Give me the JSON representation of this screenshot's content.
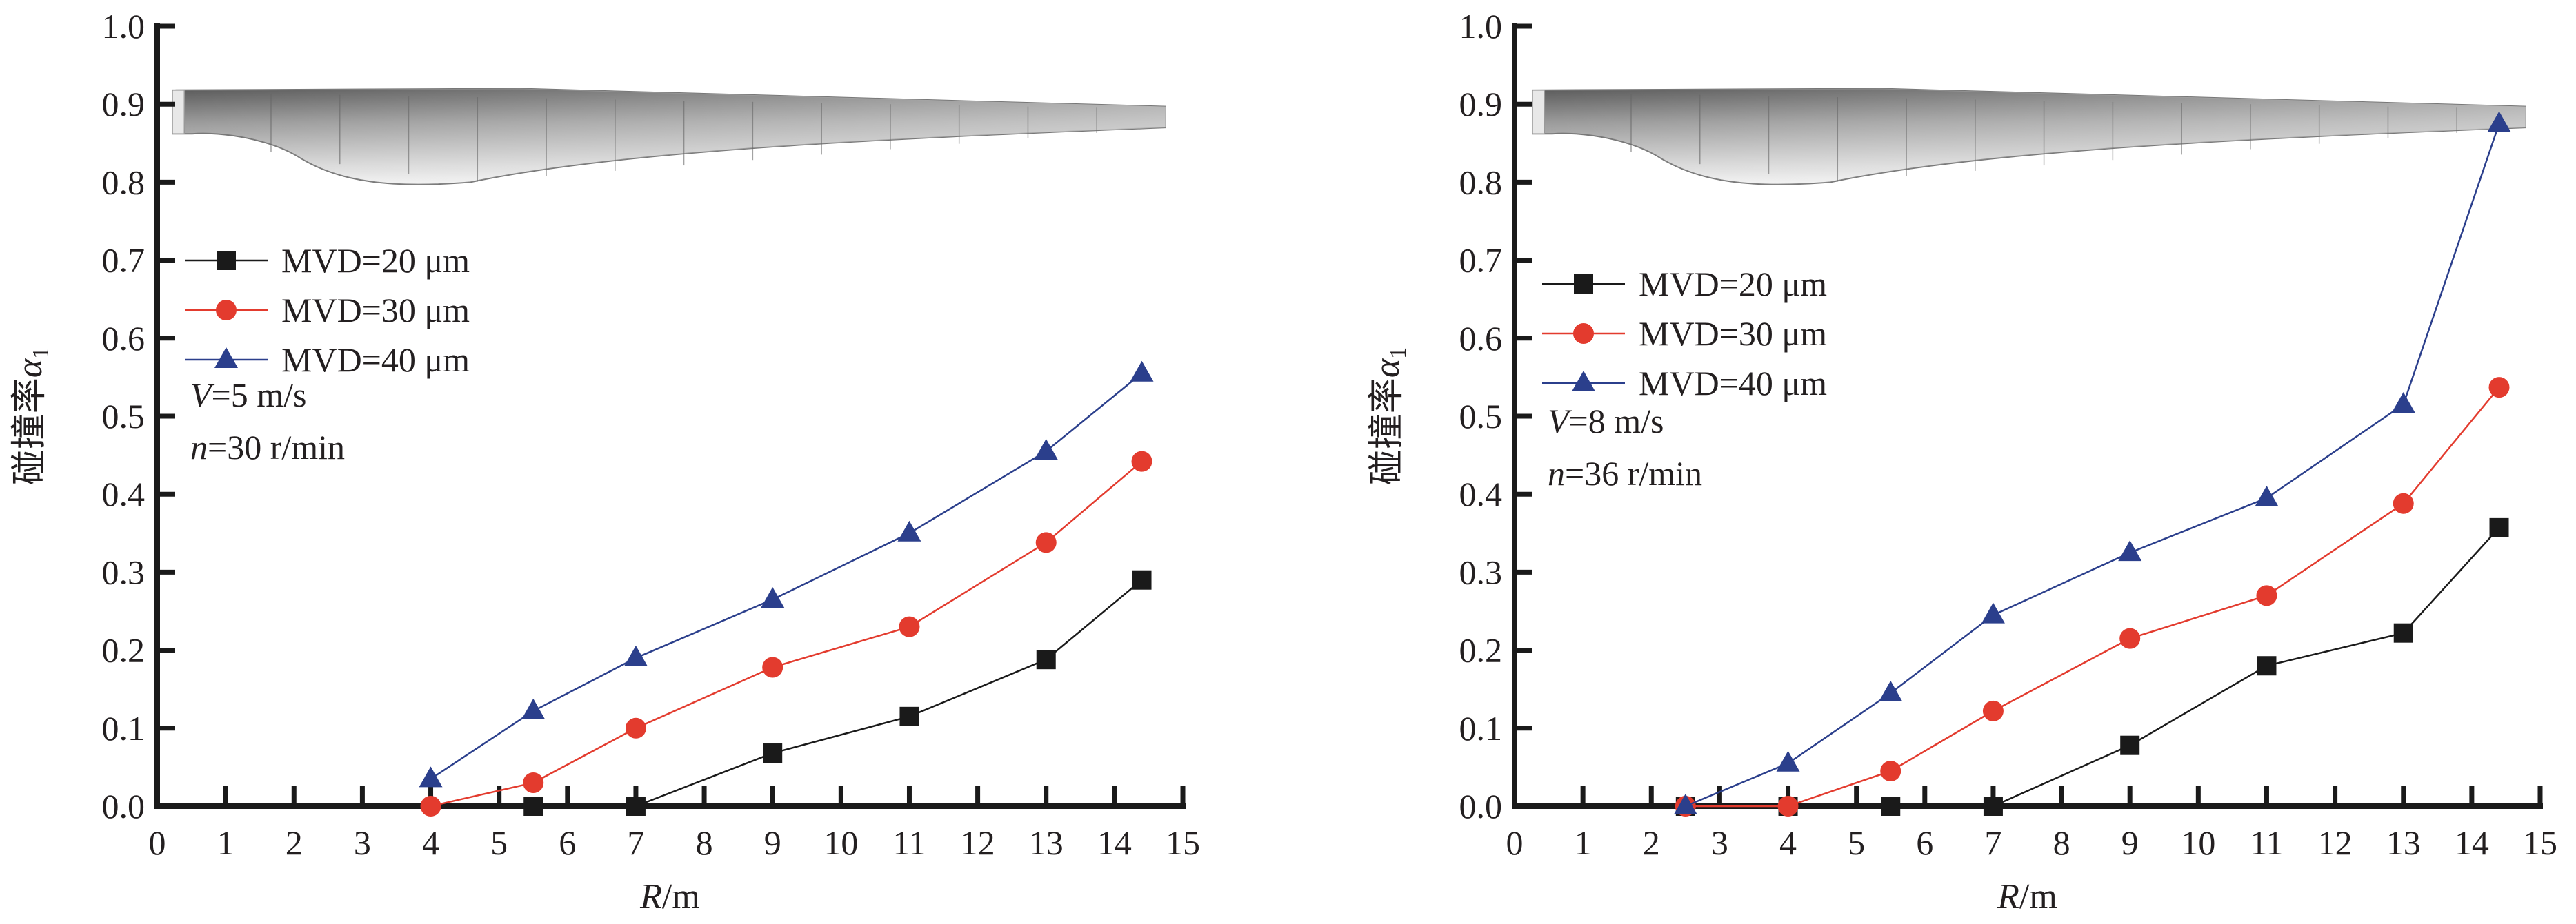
{
  "chart_data": [
    {
      "type": "line",
      "panel": "left",
      "title": "",
      "xlabel": "R/m",
      "xlabel_italic_part": "R",
      "xlabel_rest": "/m",
      "ylabel": "碰撞率α1",
      "ylabel_text": "碰撞率",
      "ylabel_symbol": "α",
      "ylabel_subscript": "1",
      "xlim": [
        0,
        15
      ],
      "ylim": [
        0,
        1.0
      ],
      "xticks": [
        0,
        1,
        2,
        3,
        4,
        5,
        6,
        7,
        8,
        9,
        10,
        11,
        12,
        13,
        14,
        15
      ],
      "xtick_labels": [
        "0",
        "1",
        "2",
        "3",
        "4",
        "5",
        "6",
        "7",
        "8",
        "9",
        "10",
        "11",
        "12",
        "13",
        "14",
        "15"
      ],
      "yticks": [
        0,
        0.1,
        0.2,
        0.3,
        0.4,
        0.5,
        0.6,
        0.7,
        0.8,
        0.9,
        1.0
      ],
      "ytick_labels": [
        "0.0",
        "0.1",
        "0.2",
        "0.3",
        "0.4",
        "0.5",
        "0.6",
        "0.7",
        "0.8",
        "0.9",
        "1.0"
      ],
      "grid": false,
      "legend_position": "left-middle",
      "conditions": [
        {
          "var": "V",
          "rest": "=5 m/s"
        },
        {
          "var": "n",
          "rest": "=30 r/min"
        }
      ],
      "series": [
        {
          "name": "MVD=20 μm",
          "marker": "square",
          "color": "#1a1a1a",
          "x": [
            5.5,
            7,
            9,
            11,
            13,
            14.4
          ],
          "y": [
            0.0,
            0.0,
            0.068,
            0.115,
            0.188,
            0.29
          ]
        },
        {
          "name": "MVD=30 μm",
          "marker": "circle",
          "color": "#e33b2e",
          "x": [
            4,
            5.5,
            7,
            9,
            11,
            13,
            14.4
          ],
          "y": [
            0.0,
            0.03,
            0.1,
            0.178,
            0.23,
            0.338,
            0.442
          ]
        },
        {
          "name": "MVD=40 μm",
          "marker": "triangle",
          "color": "#2b3f8c",
          "x": [
            4,
            5.5,
            7,
            9,
            11,
            13,
            14.4
          ],
          "y": [
            0.035,
            0.122,
            0.19,
            0.265,
            0.35,
            0.455,
            0.555
          ]
        }
      ]
    },
    {
      "type": "line",
      "panel": "right",
      "title": "",
      "xlabel": "R/m",
      "xlabel_italic_part": "R",
      "xlabel_rest": "/m",
      "ylabel": "碰撞率α1",
      "ylabel_text": "碰撞率",
      "ylabel_symbol": "α",
      "ylabel_subscript": "1",
      "xlim": [
        0,
        15
      ],
      "ylim": [
        0,
        1.0
      ],
      "xticks": [
        0,
        1,
        2,
        3,
        4,
        5,
        6,
        7,
        8,
        9,
        10,
        11,
        12,
        13,
        14,
        15
      ],
      "xtick_labels": [
        "0",
        "1",
        "2",
        "3",
        "4",
        "5",
        "6",
        "7",
        "8",
        "9",
        "10",
        "11",
        "12",
        "13",
        "14",
        "15"
      ],
      "yticks": [
        0,
        0.1,
        0.2,
        0.3,
        0.4,
        0.5,
        0.6,
        0.7,
        0.8,
        0.9,
        1.0
      ],
      "ytick_labels": [
        "0.0",
        "0.1",
        "0.2",
        "0.3",
        "0.4",
        "0.5",
        "0.6",
        "0.7",
        "0.8",
        "0.9",
        "1.0"
      ],
      "grid": false,
      "legend_position": "left-middle",
      "conditions": [
        {
          "var": "V",
          "rest": "=8 m/s"
        },
        {
          "var": "n",
          "rest": "=36 r/min"
        }
      ],
      "series": [
        {
          "name": "MVD=20 μm",
          "marker": "square",
          "color": "#1a1a1a",
          "x": [
            2.5,
            4,
            5.5,
            7,
            9,
            11,
            13,
            14.4
          ],
          "y": [
            0.0,
            0.0,
            0.0,
            0.0,
            0.078,
            0.18,
            0.222,
            0.357
          ]
        },
        {
          "name": "MVD=30 μm",
          "marker": "circle",
          "color": "#e33b2e",
          "x": [
            2.5,
            4,
            5.5,
            7,
            9,
            11,
            13,
            14.4
          ],
          "y": [
            0.0,
            0.0,
            0.045,
            0.122,
            0.215,
            0.27,
            0.388,
            0.537
          ]
        },
        {
          "name": "MVD=40 μm",
          "marker": "triangle",
          "color": "#2b3f8c",
          "x": [
            2.5,
            4,
            5.5,
            7,
            9,
            11,
            13,
            14.4
          ],
          "y": [
            0.0,
            0.055,
            0.145,
            0.245,
            0.325,
            0.395,
            0.515,
            0.875
          ]
        }
      ]
    }
  ],
  "blade_illustration": {
    "label": "blade-image",
    "description": "wind turbine blade"
  }
}
